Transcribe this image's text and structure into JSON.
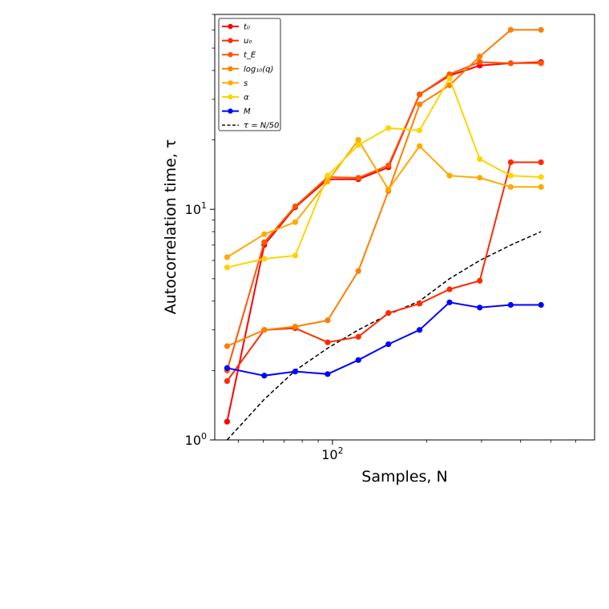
{
  "chart_data": {
    "type": "line",
    "xlabel": "Samples, N",
    "ylabel": "Autocorrelation time, τ",
    "xscale": "log",
    "yscale": "log",
    "xlim": [
      42,
      690
    ],
    "ylim": [
      1,
      70
    ],
    "x_ticks": [
      {
        "value": 100,
        "base": "10",
        "exp": "2"
      }
    ],
    "y_ticks": [
      {
        "value": 1,
        "base": "10",
        "exp": "0"
      },
      {
        "value": 10,
        "base": "10",
        "exp": "1"
      }
    ],
    "legend_position": "upper left",
    "grid": false,
    "x": [
      50,
      75,
      100,
      125,
      150,
      175,
      200,
      250,
      300,
      350,
      400
    ],
    "series": [
      {
        "name": "t₀",
        "color": "#ff0000",
        "line": "solid",
        "marker": "circle",
        "values": [
          1.2,
          7.0,
          10.2,
          13.5,
          13.5,
          15.2,
          31.5,
          38.0,
          42.0,
          43.0,
          43.5
        ]
      },
      {
        "name": "u₀",
        "color": "#ff2a00",
        "line": "solid",
        "marker": "circle",
        "values": [
          1.8,
          3.0,
          3.05,
          2.65,
          2.8,
          3.55,
          3.9,
          4.5,
          4.9,
          16.0,
          16.0
        ]
      },
      {
        "name": "t_E",
        "color": "#ff5500",
        "line": "solid",
        "marker": "circle",
        "values": [
          2.0,
          7.2,
          10.3,
          13.8,
          13.7,
          15.5,
          31.5,
          38.5,
          43.5,
          43.0,
          43.0
        ]
      },
      {
        "name": "log₁₀(q)",
        "color": "#ff7f00",
        "line": "solid",
        "marker": "circle",
        "values": [
          2.55,
          3.0,
          3.1,
          3.3,
          5.4,
          12.0,
          28.5,
          34.5,
          46.0,
          60.0,
          60.0
        ]
      },
      {
        "name": "s",
        "color": "#ffaa00",
        "line": "solid",
        "marker": "circle",
        "values": [
          6.2,
          7.8,
          8.8,
          13.2,
          20.0,
          12.2,
          18.8,
          14.0,
          13.7,
          12.5,
          12.5
        ]
      },
      {
        "name": "α",
        "color": "#ffd400",
        "line": "solid",
        "marker": "circle",
        "values": [
          5.6,
          6.1,
          6.3,
          14.0,
          19.0,
          22.5,
          22.0,
          37.0,
          16.5,
          14.0,
          13.8
        ]
      },
      {
        "name": "M",
        "color": "#0000ff",
        "line": "solid",
        "marker": "circle",
        "values": [
          2.05,
          1.9,
          1.98,
          1.93,
          2.22,
          2.6,
          3.0,
          3.95,
          3.75,
          3.85,
          3.85
        ]
      },
      {
        "name": "τ = N/50",
        "color": "#000000",
        "line": "dashed",
        "marker": "none",
        "values": [
          1.0,
          1.5,
          2.0,
          2.5,
          3.0,
          3.5,
          4.0,
          5.0,
          6.0,
          7.0,
          8.0
        ]
      }
    ],
    "point_x_override": {
      "note_free": true,
      "x": [
        46,
        60.5,
        76,
        96.5,
        121,
        151,
        190,
        237,
        296,
        372,
        465
      ]
    }
  }
}
